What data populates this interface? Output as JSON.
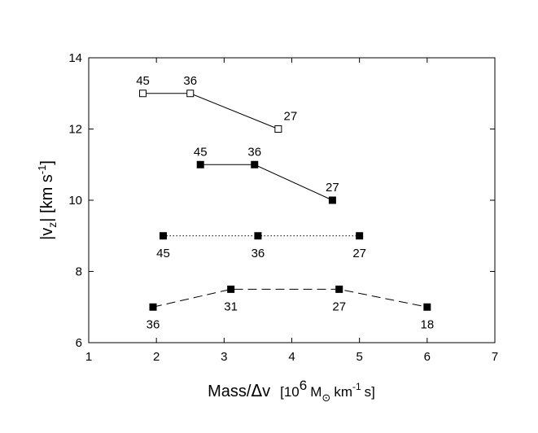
{
  "chart_data": {
    "type": "line",
    "title": "",
    "xlabel": {
      "main": "Mass/",
      "delta": "Δ",
      "v": "v",
      "bracket_open": "[10",
      "exp6": "6",
      "msun": "M",
      "sun": "⊙",
      "km": "km",
      "exp_minus1": "-1",
      "s_close": "s]"
    },
    "ylabel": {
      "vz_open": "|v",
      "z": "z",
      "vz_close": "| [km s",
      "exp": "-1",
      "close": "]"
    },
    "xlim": [
      1,
      7
    ],
    "ylim": [
      6,
      14
    ],
    "xticks": [
      1,
      2,
      3,
      4,
      5,
      6,
      7
    ],
    "yticks": [
      6,
      8,
      10,
      12,
      14
    ],
    "grid": false,
    "series": [
      {
        "marker": "open-square",
        "line": "solid",
        "points": [
          {
            "x": 1.8,
            "y": 13,
            "label": "45",
            "label_pos": "above"
          },
          {
            "x": 2.5,
            "y": 13,
            "label": "36",
            "label_pos": "above"
          },
          {
            "x": 3.8,
            "y": 12,
            "label": "27",
            "label_pos": "above-right"
          }
        ]
      },
      {
        "marker": "filled-square",
        "line": "solid",
        "points": [
          {
            "x": 2.65,
            "y": 11,
            "label": "45",
            "label_pos": "above"
          },
          {
            "x": 3.45,
            "y": 11,
            "label": "36",
            "label_pos": "above"
          },
          {
            "x": 4.6,
            "y": 10,
            "label": "27",
            "label_pos": "above"
          }
        ]
      },
      {
        "marker": "filled-square",
        "line": "dotted",
        "points": [
          {
            "x": 2.1,
            "y": 9,
            "label": "45",
            "label_pos": "below"
          },
          {
            "x": 3.5,
            "y": 9,
            "label": "36",
            "label_pos": "below"
          },
          {
            "x": 5.0,
            "y": 9,
            "label": "27",
            "label_pos": "below"
          }
        ]
      },
      {
        "marker": "filled-square",
        "line": "dashed",
        "points": [
          {
            "x": 1.95,
            "y": 7,
            "label": "36",
            "label_pos": "below"
          },
          {
            "x": 3.1,
            "y": 7.5,
            "label": "31",
            "label_pos": "below"
          },
          {
            "x": 4.7,
            "y": 7.5,
            "label": "27",
            "label_pos": "below"
          },
          {
            "x": 6.0,
            "y": 7,
            "label": "18",
            "label_pos": "below"
          }
        ]
      }
    ]
  }
}
